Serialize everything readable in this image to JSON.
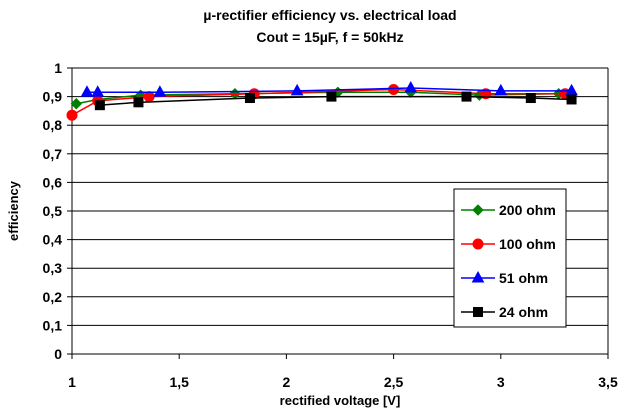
{
  "chart_data": {
    "type": "line",
    "title": "µ-rectifier efficiency vs. electrical load",
    "subtitle": "Cout = 15µF, f = 50kHz",
    "xlabel": "rectified voltage [V]",
    "ylabel": "efficiency",
    "xlim": [
      1,
      3.5
    ],
    "ylim": [
      0,
      1
    ],
    "xticks": [
      "1",
      "1,5",
      "2",
      "2,5",
      "3",
      "3,5"
    ],
    "yticks": [
      "0",
      "0,1",
      "0,2",
      "0,3",
      "0,4",
      "0,5",
      "0,6",
      "0,7",
      "0,8",
      "0,9",
      "1"
    ],
    "grid": "horizontal",
    "legend_position": "right",
    "series": [
      {
        "name": "200 ohm",
        "color": "#008000",
        "marker": "diamond",
        "x": [
          1.02,
          1.12,
          1.32,
          1.76,
          2.24,
          2.58,
          2.9,
          3.27
        ],
        "y": [
          0.875,
          0.89,
          0.905,
          0.91,
          0.915,
          0.915,
          0.905,
          0.91
        ]
      },
      {
        "name": "100 ohm",
        "color": "#ff0000",
        "marker": "circle",
        "x": [
          1.0,
          1.12,
          1.36,
          1.85,
          2.5,
          2.93,
          3.3
        ],
        "y": [
          0.835,
          0.885,
          0.9,
          0.91,
          0.925,
          0.91,
          0.91
        ]
      },
      {
        "name": "51 ohm",
        "color": "#0000ff",
        "marker": "triangle",
        "x": [
          1.07,
          1.12,
          1.41,
          2.05,
          2.58,
          3.0,
          3.33
        ],
        "y": [
          0.915,
          0.915,
          0.915,
          0.92,
          0.93,
          0.92,
          0.92
        ]
      },
      {
        "name": "24 ohm",
        "color": "#000000",
        "marker": "square",
        "x": [
          1.13,
          1.31,
          1.83,
          2.21,
          2.84,
          3.14,
          3.33
        ],
        "y": [
          0.87,
          0.88,
          0.895,
          0.9,
          0.9,
          0.895,
          0.89
        ]
      }
    ]
  }
}
